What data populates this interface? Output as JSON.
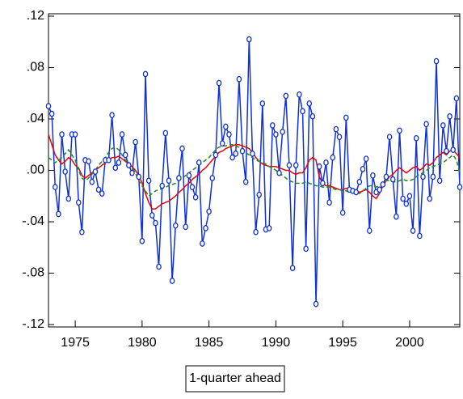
{
  "chart_data": {
    "type": "line",
    "annotation": "1-quarter ahead",
    "x": [
      1973,
      1973.25,
      1973.5,
      1973.75,
      1974,
      1974.25,
      1974.5,
      1974.75,
      1975,
      1975.25,
      1975.5,
      1975.75,
      1976,
      1976.25,
      1976.5,
      1976.75,
      1977,
      1977.25,
      1977.5,
      1977.75,
      1978,
      1978.25,
      1978.5,
      1978.75,
      1979,
      1979.25,
      1979.5,
      1979.75,
      1980,
      1980.25,
      1980.5,
      1980.75,
      1981,
      1981.25,
      1981.5,
      1981.75,
      1982,
      1982.25,
      1982.5,
      1982.75,
      1983,
      1983.25,
      1983.5,
      1983.75,
      1984,
      1984.25,
      1984.5,
      1984.75,
      1985,
      1985.25,
      1985.5,
      1985.75,
      1986,
      1986.25,
      1986.5,
      1986.75,
      1987,
      1987.25,
      1987.5,
      1987.75,
      1988,
      1988.25,
      1988.5,
      1988.75,
      1989,
      1989.25,
      1989.5,
      1989.75,
      1990,
      1990.25,
      1990.5,
      1990.75,
      1991,
      1991.25,
      1991.5,
      1991.75,
      1992,
      1992.25,
      1992.5,
      1992.75,
      1993,
      1993.25,
      1993.5,
      1993.75,
      1994,
      1994.25,
      1994.5,
      1994.75,
      1995,
      1995.25,
      1995.5,
      1995.75,
      1996,
      1996.25,
      1996.5,
      1996.75,
      1997,
      1997.25,
      1997.5,
      1997.75,
      1998,
      1998.25,
      1998.5,
      1998.75,
      1999,
      1999.25,
      1999.5,
      1999.75,
      2000,
      2000.25,
      2000.5,
      2000.75,
      2001,
      2001.25,
      2001.5,
      2001.75,
      2002,
      2002.25,
      2002.5,
      2002.75,
      2003,
      2003.25,
      2003.5,
      2003.75
    ],
    "series": [
      {
        "color": "#1030d8",
        "marker": "circle",
        "dashed": false,
        "values": [
          0.05,
          0.044,
          -0.013,
          -0.034,
          0.028,
          -0.001,
          -0.022,
          0.028,
          0.028,
          -0.025,
          -0.048,
          0.008,
          0.007,
          -0.009,
          -0.001,
          -0.015,
          -0.018,
          0.008,
          0.008,
          0.043,
          0.002,
          0.006,
          0.028,
          0.012,
          0.004,
          -0.002,
          0.022,
          -0.005,
          -0.055,
          0.075,
          -0.008,
          -0.035,
          -0.041,
          -0.075,
          -0.012,
          0.029,
          -0.008,
          -0.086,
          -0.043,
          -0.006,
          0.017,
          -0.044,
          -0.004,
          -0.013,
          -0.021,
          0.006,
          -0.057,
          -0.045,
          -0.032,
          -0.006,
          0.012,
          0.068,
          0.021,
          0.034,
          0.028,
          0.01,
          0.013,
          0.071,
          0.015,
          -0.009,
          0.102,
          0.013,
          -0.048,
          -0.019,
          0.052,
          -0.046,
          -0.045,
          0.035,
          0.028,
          -0.002,
          0.03,
          0.058,
          0.004,
          -0.076,
          0.004,
          0.059,
          0.046,
          -0.061,
          0.052,
          0.042,
          -0.104,
          0.003,
          -0.01,
          0.006,
          -0.025,
          0.01,
          0.032,
          0.026,
          -0.033,
          0.041,
          -0.015,
          -0.016,
          -0.017,
          -0.009,
          0.001,
          0.009,
          -0.047,
          -0.004,
          -0.017,
          -0.015,
          -0.011,
          -0.005,
          0.026,
          -0.007,
          -0.036,
          0.031,
          -0.022,
          -0.026,
          -0.02,
          -0.047,
          0.025,
          -0.051,
          -0.005,
          0.036,
          -0.022,
          -0.005,
          0.085,
          -0.008,
          0.035,
          0.015,
          0.042,
          0.016,
          0.056,
          -0.013
        ]
      },
      {
        "color": "#e8000b",
        "marker": "none",
        "dashed": false,
        "values": [
          0.028,
          0.02,
          0.012,
          0.008,
          0.005,
          0.007,
          0.01,
          0.008,
          0.004,
          0.002,
          -0.004,
          -0.006,
          -0.004,
          -0.002,
          0,
          0.002,
          0.004,
          0.006,
          0.008,
          0.01,
          0.01,
          0.011,
          0.009,
          0.007,
          0.005,
          0.003,
          0,
          -0.004,
          -0.01,
          -0.018,
          -0.025,
          -0.03,
          -0.03,
          -0.028,
          -0.026,
          -0.025,
          -0.024,
          -0.022,
          -0.02,
          -0.017,
          -0.015,
          -0.012,
          -0.01,
          -0.007,
          -0.005,
          -0.003,
          0,
          0.002,
          0.005,
          0.008,
          0.011,
          0.014,
          0.015,
          0.017,
          0.018,
          0.019,
          0.02,
          0.02,
          0.019,
          0.018,
          0.017,
          0.014,
          0.01,
          0.007,
          0.005,
          0.004,
          0.003,
          0.003,
          0.003,
          0.002,
          0.001,
          0,
          0,
          -0.002,
          -0.003,
          -0.002,
          -0.002,
          0.002,
          0.008,
          0.01,
          0.008,
          -0.005,
          -0.01,
          -0.012,
          -0.012,
          -0.013,
          -0.014,
          -0.015,
          -0.015,
          -0.014,
          -0.015,
          -0.016,
          -0.016,
          -0.017,
          -0.016,
          -0.015,
          -0.017,
          -0.02,
          -0.022,
          -0.018,
          -0.012,
          -0.008,
          -0.005,
          -0.003,
          0,
          0.002,
          0,
          -0.002,
          0,
          0.002,
          0.003,
          0,
          0.002,
          0.005,
          0.004,
          0.006,
          0.01,
          0.012,
          0.014,
          0.012,
          0.015,
          0.016,
          0.013,
          0.01
        ]
      },
      {
        "color": "#2a8a2a",
        "marker": "none",
        "dashed": true,
        "values": [
          0.01,
          0.008,
          0.006,
          0.008,
          0.01,
          0.013,
          0.016,
          0.012,
          0.008,
          0,
          -0.006,
          -0.008,
          -0.006,
          -0.003,
          0,
          0.004,
          0.007,
          0.01,
          0.014,
          0.017,
          0.018,
          0.016,
          0.012,
          0.008,
          0.005,
          0.002,
          -0.002,
          -0.008,
          -0.012,
          -0.016,
          -0.02,
          -0.018,
          -0.016,
          -0.015,
          -0.014,
          -0.013,
          -0.012,
          -0.011,
          -0.01,
          -0.008,
          -0.006,
          -0.004,
          -0.002,
          0,
          0.002,
          0.004,
          0.006,
          0.008,
          0.01,
          0.013,
          0.016,
          0.018,
          0.019,
          0.019,
          0.02,
          0.02,
          0.019,
          0.018,
          0.016,
          0.014,
          0.012,
          0.01,
          0.008,
          0.007,
          0.006,
          0.005,
          0.003,
          0.002,
          0,
          -0.002,
          -0.004,
          -0.006,
          -0.008,
          -0.009,
          -0.01,
          -0.01,
          -0.01,
          -0.009,
          -0.01,
          -0.011,
          -0.012,
          -0.012,
          -0.013,
          -0.013,
          -0.013,
          -0.014,
          -0.015,
          -0.015,
          -0.016,
          -0.016,
          -0.017,
          -0.017,
          -0.018,
          -0.018,
          -0.016,
          -0.014,
          -0.012,
          -0.012,
          -0.013,
          -0.012,
          -0.01,
          -0.008,
          -0.008,
          -0.009,
          -0.009,
          -0.008,
          -0.007,
          -0.008,
          -0.008,
          -0.007,
          -0.005,
          -0.003,
          -0.002,
          0,
          0.002,
          0.003,
          0.004,
          0.005,
          0.006,
          0.008,
          0.01,
          0.012,
          0.008,
          -0.002
        ]
      }
    ],
    "xlim": [
      1973,
      2003.75
    ],
    "xticks": [
      1975,
      1980,
      1985,
      1990,
      1995,
      2000
    ],
    "ylim": [
      -0.12,
      0.12
    ],
    "yticks": [
      {
        "value": -0.12,
        "label": "-.12"
      },
      {
        "value": -0.08,
        "label": "-.08"
      },
      {
        "value": -0.04,
        "label": "-.04"
      },
      {
        "value": 0,
        "label": ".00"
      },
      {
        "value": 0.04,
        "label": ".04"
      },
      {
        "value": 0.08,
        "label": ".08"
      },
      {
        "value": 0.12,
        "label": ".12"
      }
    ]
  }
}
